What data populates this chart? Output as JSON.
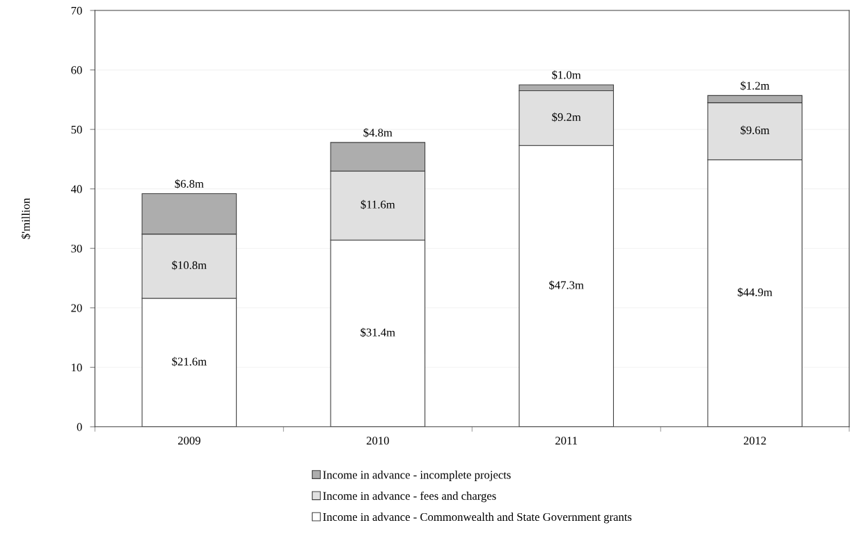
{
  "chart_data": {
    "type": "bar",
    "stacked": true,
    "ylabel": "$'million",
    "categories": [
      "2009",
      "2010",
      "2011",
      "2012"
    ],
    "series": [
      {
        "name": "Income in advance - Commonwealth and State Government grants",
        "color": "#ffffff",
        "values": [
          21.6,
          31.4,
          47.3,
          44.9
        ],
        "value_labels": [
          "$21.6m",
          "$31.4m",
          "$47.3m",
          "$44.9m"
        ]
      },
      {
        "name": "Income in advance - fees and charges",
        "color": "#e0e0e0",
        "values": [
          10.8,
          11.6,
          9.2,
          9.6
        ],
        "value_labels": [
          "$10.8m",
          "$11.6m",
          "$9.2m",
          "$9.6m"
        ]
      },
      {
        "name": "Income in advance - incomplete projects",
        "color": "#adadad",
        "values": [
          6.8,
          4.8,
          1.0,
          1.2
        ],
        "value_labels": [
          "$6.8m",
          "$4.8m",
          "$1.0m",
          "$1.2m"
        ]
      }
    ],
    "ylim": [
      0,
      70
    ],
    "yticks": [
      0,
      10,
      20,
      30,
      40,
      50,
      60,
      70
    ],
    "grid": "y",
    "legend": "bottom"
  }
}
